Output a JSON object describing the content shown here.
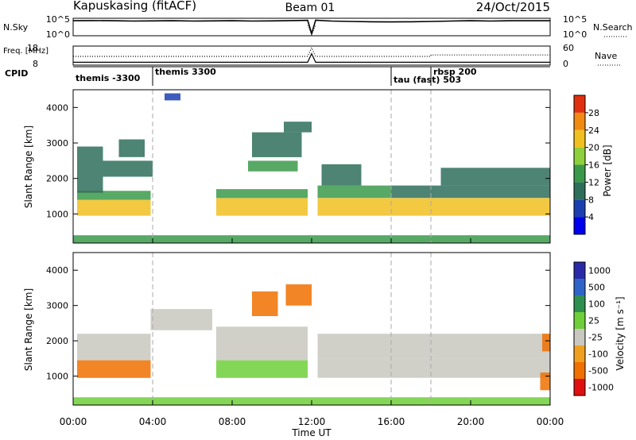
{
  "header": {
    "station": "Kapuskasing (fitACF)",
    "beam": "Beam 01",
    "date": "24/Oct/2015"
  },
  "chart_data": [
    {
      "type": "line",
      "panel": "noise",
      "left_label": "N.Sky",
      "right_label": "N.Search",
      "left_ticks": [
        "10^5",
        "10^0"
      ],
      "right_ticks": [
        "10^5",
        "10^0"
      ],
      "series": [
        {
          "name": "N.Sky",
          "style": "solid",
          "x": [
            0,
            1,
            2,
            3,
            4,
            5,
            6,
            7,
            8,
            9,
            10,
            11,
            11.8,
            12.0,
            12.2,
            13,
            14,
            15,
            16,
            17,
            18,
            19,
            20,
            21,
            22,
            23,
            24
          ],
          "y": [
            4.3,
            4.35,
            4.3,
            4.2,
            4.25,
            4.3,
            4.2,
            4.25,
            4.3,
            4.2,
            4.25,
            4.35,
            4.4,
            0.6,
            4.45,
            4.2,
            4.1,
            4.0,
            3.95,
            4.0,
            4.1,
            4.2,
            4.3,
            4.2,
            4.3,
            4.3,
            4.3
          ]
        },
        {
          "name": "N.Search",
          "style": "dotted",
          "x": [
            11.8,
            12.0,
            12.2
          ],
          "y": [
            3.0,
            0.3,
            3.0
          ]
        }
      ]
    },
    {
      "type": "line",
      "panel": "frequency",
      "left_label": "Freq. [MHz]",
      "right_label": "Nave",
      "left_ticks": [
        "18",
        "8"
      ],
      "right_ticks": [
        "60",
        "0"
      ],
      "series": [
        {
          "name": "Freq",
          "style": "solid",
          "x": [
            0,
            4,
            8,
            11.8,
            12.0,
            12.2,
            16,
            20,
            24
          ],
          "y": [
            10,
            10,
            10,
            10,
            16,
            10,
            10,
            10,
            10
          ]
        },
        {
          "name": "Nave",
          "style": "dotted",
          "x": [
            0,
            4,
            8,
            11.8,
            12.0,
            12.2,
            16,
            18,
            18.01,
            20,
            24
          ],
          "y": [
            30,
            30,
            30,
            30,
            60,
            30,
            30,
            30,
            35,
            35,
            35
          ]
        }
      ]
    },
    {
      "type": "table",
      "panel": "cpid",
      "label": "CPID",
      "entries": [
        {
          "start": 0,
          "name": "themis -3300"
        },
        {
          "start": 4,
          "name": "themis 3300"
        },
        {
          "start": 16,
          "name": "tau (fast) 503"
        },
        {
          "start": 18,
          "name": "rbsp 200"
        }
      ]
    },
    {
      "type": "heatmap",
      "panel": "power",
      "ylabel": "Slant Range [km]",
      "xlim": [
        0,
        24
      ],
      "ylim": [
        180,
        4500
      ],
      "yticks": [
        "1000",
        "2000",
        "3000",
        "4000"
      ],
      "colorbar": {
        "label": "Power [dB]",
        "min": 0,
        "max": 32,
        "ticks": [
          "4",
          "8",
          "12",
          "16",
          "20",
          "24",
          "28"
        ]
      },
      "regions": [
        {
          "t0": 0.2,
          "t1": 3.9,
          "r0": 950,
          "r1": 1400,
          "value": 22
        },
        {
          "t0": 0.2,
          "t1": 3.9,
          "r0": 1400,
          "r1": 1650,
          "value": 12
        },
        {
          "t0": 0.2,
          "t1": 1.5,
          "r0": 1600,
          "r1": 2900,
          "value": 10
        },
        {
          "t0": 1.5,
          "t1": 4.0,
          "r0": 2050,
          "r1": 2500,
          "value": 11
        },
        {
          "t0": 2.3,
          "t1": 3.6,
          "r0": 2600,
          "r1": 3100,
          "value": 8
        },
        {
          "t0": 7.2,
          "t1": 11.8,
          "r0": 950,
          "r1": 1450,
          "value": 21
        },
        {
          "t0": 7.2,
          "t1": 11.8,
          "r0": 1450,
          "r1": 1700,
          "value": 13
        },
        {
          "t0": 8.8,
          "t1": 11.3,
          "r0": 2200,
          "r1": 2500,
          "value": 12
        },
        {
          "t0": 9.0,
          "t1": 11.5,
          "r0": 2600,
          "r1": 3300,
          "value": 9
        },
        {
          "t0": 10.6,
          "t1": 12.0,
          "r0": 3300,
          "r1": 3600,
          "value": 10
        },
        {
          "t0": 12.3,
          "t1": 16.0,
          "r0": 950,
          "r1": 1450,
          "value": 20
        },
        {
          "t0": 12.3,
          "t1": 16.0,
          "r0": 1450,
          "r1": 1800,
          "value": 12
        },
        {
          "t0": 12.5,
          "t1": 14.5,
          "r0": 1800,
          "r1": 2400,
          "value": 8
        },
        {
          "t0": 16.0,
          "t1": 24.0,
          "r0": 950,
          "r1": 1450,
          "value": 22
        },
        {
          "t0": 16.0,
          "t1": 24.0,
          "r0": 1450,
          "r1": 1800,
          "value": 10
        },
        {
          "t0": 18.5,
          "t1": 24.0,
          "r0": 1800,
          "r1": 2300,
          "value": 8
        },
        {
          "t0": 4.6,
          "t1": 5.4,
          "r0": 4200,
          "r1": 4400,
          "value": 6
        },
        {
          "t0": 0.0,
          "t1": 24.0,
          "r0": 180,
          "r1": 400,
          "value": 14
        }
      ]
    },
    {
      "type": "heatmap",
      "panel": "velocity",
      "ylabel": "Slant Range [km]",
      "xlabel": "Time UT",
      "xlim": [
        0,
        24
      ],
      "ylim": [
        180,
        4500
      ],
      "xticks": [
        "00:00",
        "04:00",
        "08:00",
        "12:00",
        "16:00",
        "20:00",
        "00:00"
      ],
      "yticks": [
        "1000",
        "2000",
        "3000",
        "4000"
      ],
      "colorbar": {
        "label": "Velocity [m s⁻¹]",
        "ticks": [
          "1000",
          "500",
          "100",
          "25",
          "-25",
          "-100",
          "-500",
          "-1000"
        ]
      },
      "regions": [
        {
          "t0": 0.2,
          "t1": 3.9,
          "r0": 950,
          "r1": 1450,
          "value": -200
        },
        {
          "t0": 0.2,
          "t1": 3.9,
          "r0": 1450,
          "r1": 2200,
          "value": 0
        },
        {
          "t0": 3.9,
          "t1": 7.0,
          "r0": 2300,
          "r1": 2900,
          "value": 0
        },
        {
          "t0": 7.2,
          "t1": 11.8,
          "r0": 950,
          "r1": 1450,
          "value": 60
        },
        {
          "t0": 7.2,
          "t1": 11.8,
          "r0": 1450,
          "r1": 2400,
          "value": 0
        },
        {
          "t0": 9.0,
          "t1": 10.3,
          "r0": 2700,
          "r1": 3400,
          "value": -250
        },
        {
          "t0": 10.7,
          "t1": 12.0,
          "r0": 3000,
          "r1": 3600,
          "value": -250
        },
        {
          "t0": 12.3,
          "t1": 24.0,
          "r0": 950,
          "r1": 1500,
          "value": 0
        },
        {
          "t0": 12.3,
          "t1": 24.0,
          "r0": 1500,
          "r1": 2200,
          "value": 0
        },
        {
          "t0": 23.5,
          "t1": 24.0,
          "r0": 600,
          "r1": 1100,
          "value": -300
        },
        {
          "t0": 23.6,
          "t1": 24.0,
          "r0": 1700,
          "r1": 2200,
          "value": -120
        },
        {
          "t0": 0.0,
          "t1": 24.0,
          "r0": 180,
          "r1": 400,
          "value": 60
        }
      ]
    }
  ]
}
